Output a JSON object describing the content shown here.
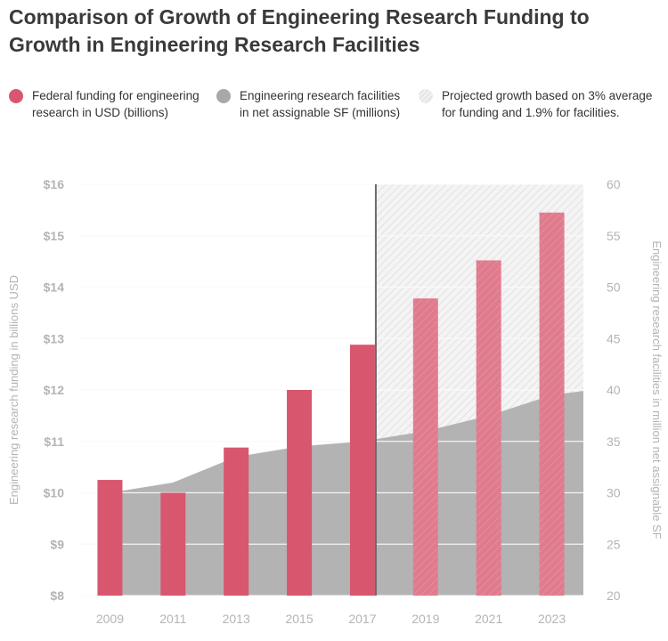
{
  "title": "Comparison of Growth of Engineering Research Funding to Growth in Engineering Research Facilities",
  "legend": [
    {
      "label": "Federal funding for engineering research in USD (billions)",
      "color": "#d9566f",
      "icon": "red-circle"
    },
    {
      "label": "Engineering research facilities in net assignable SF (millions)",
      "color": "#a8a8a8",
      "icon": "gray-circle"
    },
    {
      "label": "Projected growth based on 3% average for funding and 1.9% for facilities.",
      "color": "#e8e8e8",
      "icon": "hatched-circle"
    }
  ],
  "chart_data": {
    "type": "bar",
    "categories": [
      "2009",
      "2011",
      "2013",
      "2015",
      "2017",
      "2019",
      "2021",
      "2023"
    ],
    "series": [
      {
        "name": "Federal funding for engineering research in USD (billions)",
        "type": "bar",
        "axis": "left",
        "values": [
          10.25,
          10.0,
          10.88,
          12.0,
          12.88,
          13.78,
          14.52,
          15.45
        ],
        "color": "#d9566f",
        "projected_color": "#e07b8e"
      },
      {
        "name": "Engineering research facilities in net assignable SF (millions)",
        "type": "area",
        "axis": "right",
        "values": [
          30.0,
          31.0,
          33.5,
          34.5,
          35.0,
          36.0,
          37.5,
          39.5
        ],
        "color": "#b3b3b3"
      }
    ],
    "projection_start": "2017",
    "y_left": {
      "label": "Engineering research funding in billions USD",
      "min": 8,
      "max": 16,
      "ticks": [
        "$8",
        "$9",
        "$10",
        "$11",
        "$12",
        "$13",
        "$14",
        "$15",
        "$16"
      ]
    },
    "y_right": {
      "label": "Engineering research facilities in million net assignable SF",
      "min": 20,
      "max": 60,
      "ticks": [
        "20",
        "25",
        "30",
        "35",
        "40",
        "45",
        "50",
        "55",
        "60"
      ]
    },
    "grid": true
  }
}
